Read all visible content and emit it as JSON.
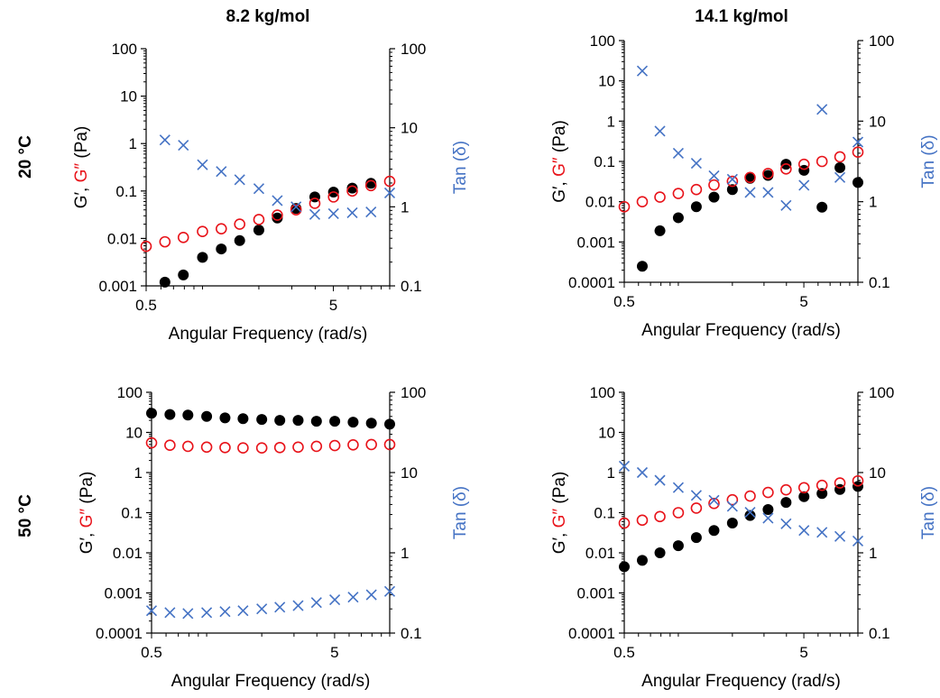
{
  "columns": [
    "8.2 kg/mol",
    "14.1 kg/mol"
  ],
  "rows": [
    "20 °C",
    "50 °C"
  ],
  "colors": {
    "gprime": "#000000",
    "gdoubleprime": "#E8131A",
    "tan": "#4472C4"
  },
  "labels": {
    "y_prefix": "G′, ",
    "y_gdp": "G″",
    "y_suffix": " (Pa)",
    "y_right": "Tan (δ)",
    "x": "Angular Frequency (rad/s)"
  },
  "chart_data": [
    {
      "type": "scatter",
      "title": "8.2 kg/mol",
      "row": "20 °C",
      "xlabel": "Angular Frequency (rad/s)",
      "ylabel": "G′, G″ (Pa)",
      "y2label": "Tan (δ)",
      "xscale": "log",
      "xlim": [
        0.5,
        10
      ],
      "xticks": [
        "0.5",
        "5"
      ],
      "yscale": "log",
      "ylim": [
        0.001,
        100
      ],
      "yticks": [
        "0.001",
        "0.01",
        "0.1",
        "1",
        "10",
        "100"
      ],
      "y2scale": "log",
      "y2lim": [
        0.1,
        100
      ],
      "y2ticks": [
        "0.1",
        "1",
        "10",
        "100"
      ],
      "series": [
        {
          "key": "gprime",
          "marker": "filled-circle",
          "axis": "left",
          "x": [
            0.63,
            0.79,
            1.0,
            1.26,
            1.58,
            2.0,
            2.51,
            3.16,
            3.98,
            5.01,
            6.31,
            7.94
          ],
          "y": [
            0.0012,
            0.0017,
            0.004,
            0.006,
            0.009,
            0.015,
            0.027,
            0.043,
            0.075,
            0.095,
            0.115,
            0.145
          ]
        },
        {
          "key": "gdoubleprime",
          "marker": "open-circle",
          "axis": "left",
          "x": [
            0.5,
            0.63,
            0.79,
            1.0,
            1.26,
            1.58,
            2.0,
            2.51,
            3.16,
            3.98,
            5.01,
            6.31,
            7.94,
            10.0
          ],
          "y": [
            0.0068,
            0.0085,
            0.0105,
            0.014,
            0.016,
            0.02,
            0.025,
            0.031,
            0.04,
            0.055,
            0.075,
            0.1,
            0.13,
            0.16
          ]
        },
        {
          "key": "tan",
          "marker": "x",
          "axis": "right",
          "x": [
            0.63,
            0.79,
            1.0,
            1.26,
            1.58,
            2.0,
            2.51,
            3.16,
            3.98,
            5.01,
            6.31,
            7.94,
            10.0
          ],
          "y": [
            7.0,
            6.0,
            3.4,
            2.8,
            2.2,
            1.7,
            1.2,
            1.0,
            0.8,
            0.82,
            0.84,
            0.86,
            1.5
          ]
        }
      ]
    },
    {
      "type": "scatter",
      "title": "14.1 kg/mol",
      "row": "20 °C",
      "xlabel": "Angular Frequency (rad/s)",
      "ylabel": "G′, G″ (Pa)",
      "y2label": "Tan (δ)",
      "xscale": "log",
      "xlim": [
        0.5,
        10
      ],
      "xticks": [
        "0.5",
        "5"
      ],
      "yscale": "log",
      "ylim": [
        0.0001,
        100
      ],
      "yticks": [
        "0.0001",
        "0.001",
        "0.01",
        "0.1",
        "1",
        "10",
        "100"
      ],
      "y2scale": "log",
      "y2lim": [
        0.1,
        100
      ],
      "y2ticks": [
        "0.1",
        "1",
        "10",
        "100"
      ],
      "series": [
        {
          "key": "gprime",
          "marker": "filled-circle",
          "axis": "left",
          "x": [
            0.63,
            0.79,
            1.0,
            1.26,
            1.58,
            2.0,
            2.51,
            3.16,
            3.98,
            5.01,
            6.31,
            7.94,
            10.0
          ],
          "y": [
            0.00025,
            0.0019,
            0.004,
            0.0075,
            0.013,
            0.02,
            0.038,
            0.045,
            0.085,
            0.06,
            0.0073,
            0.07,
            0.03
          ]
        },
        {
          "key": "gdoubleprime",
          "marker": "open-circle",
          "axis": "left",
          "x": [
            0.5,
            0.63,
            0.79,
            1.0,
            1.26,
            1.58,
            2.0,
            2.51,
            3.16,
            3.98,
            5.01,
            6.31,
            7.94,
            10.0
          ],
          "y": [
            0.0075,
            0.01,
            0.013,
            0.016,
            0.02,
            0.026,
            0.032,
            0.04,
            0.05,
            0.065,
            0.085,
            0.1,
            0.13,
            0.17
          ]
        },
        {
          "key": "tan",
          "marker": "x",
          "axis": "right",
          "x": [
            0.63,
            0.79,
            1.0,
            1.26,
            1.58,
            2.0,
            2.51,
            3.16,
            3.98,
            5.01,
            6.31,
            7.94,
            10.0
          ],
          "y": [
            42.0,
            7.5,
            4.0,
            3.0,
            2.1,
            1.9,
            1.3,
            1.3,
            0.9,
            1.6,
            14.0,
            2.0,
            5.5
          ]
        }
      ]
    },
    {
      "type": "scatter",
      "title": "8.2 kg/mol",
      "row": "50 °C",
      "xlabel": "Angular Frequency (rad/s)",
      "ylabel": "G′, G″ (Pa)",
      "y2label": "Tan (δ)",
      "xscale": "log",
      "xlim": [
        0.5,
        10
      ],
      "xticks": [
        "0.5",
        "5"
      ],
      "yscale": "log",
      "ylim": [
        0.0001,
        100
      ],
      "yticks": [
        "0.0001",
        "0.001",
        "0.01",
        "0.1",
        "1",
        "10",
        "100"
      ],
      "y2scale": "log",
      "y2lim": [
        0.1,
        100
      ],
      "y2ticks": [
        "0.1",
        "1",
        "10",
        "100"
      ],
      "series": [
        {
          "key": "gprime",
          "marker": "filled-circle",
          "axis": "left",
          "x": [
            0.5,
            0.63,
            0.79,
            1.0,
            1.26,
            1.58,
            2.0,
            2.51,
            3.16,
            3.98,
            5.01,
            6.31,
            7.94,
            10.0
          ],
          "y": [
            30,
            28,
            27,
            25,
            23,
            22,
            21,
            20,
            20,
            19,
            19,
            18,
            17,
            16
          ]
        },
        {
          "key": "gdoubleprime",
          "marker": "open-circle",
          "axis": "left",
          "x": [
            0.5,
            0.63,
            0.79,
            1.0,
            1.26,
            1.58,
            2.0,
            2.51,
            3.16,
            3.98,
            5.01,
            6.31,
            7.94,
            10.0
          ],
          "y": [
            5.5,
            4.8,
            4.5,
            4.3,
            4.2,
            4.1,
            4.1,
            4.2,
            4.3,
            4.5,
            4.7,
            4.9,
            5.0,
            5.0
          ]
        },
        {
          "key": "tan",
          "marker": "x",
          "axis": "right",
          "x": [
            0.5,
            0.63,
            0.79,
            1.0,
            1.26,
            1.58,
            2.0,
            2.51,
            3.16,
            3.98,
            5.01,
            6.31,
            7.94,
            10.0
          ],
          "y": [
            0.19,
            0.18,
            0.175,
            0.18,
            0.185,
            0.19,
            0.2,
            0.21,
            0.22,
            0.24,
            0.26,
            0.28,
            0.3,
            0.33
          ]
        }
      ]
    },
    {
      "type": "scatter",
      "title": "14.1 kg/mol",
      "row": "50 °C",
      "xlabel": "Angular Frequency (rad/s)",
      "ylabel": "G′, G″ (Pa)",
      "y2label": "Tan (δ)",
      "xscale": "log",
      "xlim": [
        0.5,
        10
      ],
      "xticks": [
        "0.5",
        "5"
      ],
      "yscale": "log",
      "ylim": [
        0.0001,
        100
      ],
      "yticks": [
        "0.0001",
        "0.001",
        "0.01",
        "0.1",
        "1",
        "10",
        "100"
      ],
      "y2scale": "log",
      "y2lim": [
        0.1,
        100
      ],
      "y2ticks": [
        "0.1",
        "1",
        "10",
        "100"
      ],
      "series": [
        {
          "key": "gprime",
          "marker": "filled-circle",
          "axis": "left",
          "x": [
            0.5,
            0.63,
            0.79,
            1.0,
            1.26,
            1.58,
            2.0,
            2.51,
            3.16,
            3.98,
            5.01,
            6.31,
            7.94,
            10.0
          ],
          "y": [
            0.0045,
            0.0065,
            0.01,
            0.015,
            0.024,
            0.036,
            0.055,
            0.085,
            0.12,
            0.18,
            0.25,
            0.3,
            0.38,
            0.45
          ]
        },
        {
          "key": "gdoubleprime",
          "marker": "open-circle",
          "axis": "left",
          "x": [
            0.5,
            0.63,
            0.79,
            1.0,
            1.26,
            1.58,
            2.0,
            2.51,
            3.16,
            3.98,
            5.01,
            6.31,
            7.94,
            10.0
          ],
          "y": [
            0.055,
            0.065,
            0.08,
            0.1,
            0.13,
            0.17,
            0.21,
            0.26,
            0.32,
            0.37,
            0.42,
            0.48,
            0.55,
            0.62
          ]
        },
        {
          "key": "tan",
          "marker": "x",
          "axis": "right",
          "x": [
            0.5,
            0.63,
            0.79,
            1.0,
            1.26,
            1.58,
            2.0,
            2.51,
            3.16,
            3.98,
            5.01,
            6.31,
            7.94,
            10.0
          ],
          "y": [
            12.0,
            10.0,
            8.0,
            6.5,
            5.2,
            4.5,
            3.8,
            3.2,
            2.7,
            2.3,
            1.9,
            1.8,
            1.6,
            1.4
          ]
        }
      ]
    }
  ]
}
